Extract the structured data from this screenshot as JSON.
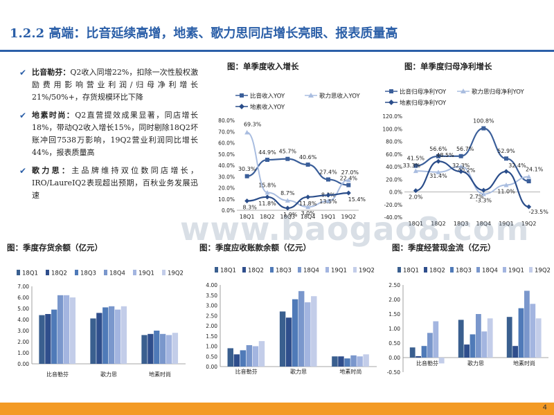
{
  "header": {
    "title": "1.2.2 高端：比音延续高增，地素、歌力思同店增长亮眼、报表质量高"
  },
  "bullets": [
    {
      "head": "比音勒芬：",
      "text": "Q2收入同增22%，扣除一次性股权激励费用影响营业利润/归母净利增长21%/50%+，存货规模环比下降"
    },
    {
      "head": "地素时尚：",
      "text": "Q2直营提效成果显著，同店增长18%，带动Q2收入增长15%，同时剔除18Q2坏账冲回7538万影响，19Q2营业利润同比增长44%，报表质量高"
    },
    {
      "head": "歌力思：",
      "text": "主品牌维持双位数同店增长，IRO/LaureIQ2表现超出预期，百秋业务发展迅速"
    }
  ],
  "check_icon": "checkmark-icon",
  "watermark": "www.baogao8.com",
  "page_number": "4",
  "colors": {
    "title": "#2b5fa8",
    "footer": "#f39a25",
    "bar_series": [
      "#3a5f8f",
      "#2f4e8c",
      "#4f7ab8",
      "#7a97cc",
      "#a3b5e0",
      "#c3cde9"
    ],
    "line_series": [
      "#3b5f9a",
      "#a9bde0",
      "#2a4d8a"
    ]
  },
  "chart_data": [
    {
      "type": "line",
      "title": "图：单季度收入增长",
      "categories": [
        "18Q1",
        "18Q2",
        "18Q3",
        "18Q4",
        "19Q1",
        "19Q2"
      ],
      "series": [
        {
          "name": "比音收入YOY",
          "values": [
            30.3,
            44.9,
            45.7,
            40.6,
            27.4,
            22.4
          ],
          "labels": [
            "30.3%",
            "44.9%",
            "45.7%",
            "40.6%",
            "27.4%",
            "22.4%"
          ]
        },
        {
          "name": "歌力思收入YOY",
          "values": [
            69.3,
            15.8,
            8.7,
            3.0,
            8.3,
            27.0
          ],
          "labels": [
            "69.3%",
            "15.8%",
            "8.7%",
            "3.0%",
            "8.3%",
            "27.0%"
          ]
        },
        {
          "name": "地素收入YOY",
          "values": [
            8.3,
            11.8,
            1.9,
            11.8,
            13.5,
            15.4
          ],
          "labels": [
            "8.3%",
            "11.8%",
            "1.9%",
            "11.8%",
            "13.5%",
            "15.4%"
          ]
        }
      ],
      "yticks": [
        "0.0%",
        "10.0%",
        "20.0%",
        "30.0%",
        "40.0%",
        "50.0%",
        "60.0%",
        "70.0%",
        "80.0%"
      ],
      "ylim": [
        0,
        80
      ],
      "legend": "top"
    },
    {
      "type": "line",
      "title": "图：单季度归母净利增长",
      "categories": [
        "18Q1",
        "18Q2",
        "18Q3",
        "18Q4",
        "19Q1",
        "19Q2"
      ],
      "series": [
        {
          "name": "比音归母净利YOY",
          "values": [
            41.5,
            56.6,
            56.7,
            100.8,
            52.9,
            17.0
          ],
          "labels": [
            "41.5%",
            "56.6%",
            "56.7%",
            "100.8%",
            "52.9%",
            ""
          ]
        },
        {
          "name": "歌力思归母净利YOY",
          "values": [
            33.3,
            31.4,
            40.2,
            -3.3,
            11.0,
            24.1
          ],
          "labels": [
            "33.3%",
            "31.4%",
            "40.2%",
            "-3.3%",
            "11.0%",
            "24.1%"
          ]
        },
        {
          "name": "地素归母净利YOY",
          "values": [
            2.0,
            48.5,
            32.3,
            2.7,
            32.4,
            -23.5
          ],
          "labels": [
            "2.0%",
            "48.5%",
            "32.3%",
            "2.7%",
            "32.4%",
            "-23.5%"
          ]
        }
      ],
      "yticks": [
        "-40.0%",
        "-20.0%",
        "0.0%",
        "20.0%",
        "40.0%",
        "60.0%",
        "80.0%",
        "100.0%",
        "120.0%"
      ],
      "ylim": [
        -40,
        120
      ],
      "legend": "top"
    },
    {
      "type": "bar",
      "title": "图：季度存货余额（亿元）",
      "categories": [
        "比音勒芬",
        "歌力思",
        "地素时尚"
      ],
      "series": [
        {
          "name": "18Q1",
          "values": [
            4.4,
            4.1,
            2.6
          ]
        },
        {
          "name": "18Q2",
          "values": [
            4.5,
            4.6,
            2.7
          ]
        },
        {
          "name": "18Q3",
          "values": [
            4.9,
            5.1,
            3.0
          ]
        },
        {
          "name": "18Q4",
          "values": [
            6.2,
            5.2,
            2.7
          ]
        },
        {
          "name": "19Q1",
          "values": [
            6.2,
            4.9,
            2.6
          ]
        },
        {
          "name": "19Q2",
          "values": [
            6.0,
            5.2,
            2.8
          ]
        }
      ],
      "yticks": [
        "0.00",
        "1.00",
        "2.00",
        "3.00",
        "4.00",
        "5.00",
        "6.00",
        "7.00"
      ],
      "ylim": [
        0,
        7
      ],
      "legend": "top"
    },
    {
      "type": "bar",
      "title": "图：季度应收账款余额（亿元）",
      "categories": [
        "比音勒芬",
        "歌力思",
        "地素时尚"
      ],
      "series": [
        {
          "name": "18Q1",
          "values": [
            0.9,
            2.7,
            0.5
          ]
        },
        {
          "name": "18Q2",
          "values": [
            0.6,
            2.4,
            0.5
          ]
        },
        {
          "name": "18Q3",
          "values": [
            0.8,
            3.3,
            0.4
          ]
        },
        {
          "name": "18Q4",
          "values": [
            1.05,
            3.7,
            0.55
          ]
        },
        {
          "name": "19Q1",
          "values": [
            1.0,
            3.15,
            0.5
          ]
        },
        {
          "name": "19Q2",
          "values": [
            1.25,
            3.45,
            0.6
          ]
        }
      ],
      "yticks": [
        "0.00",
        "0.50",
        "1.00",
        "1.50",
        "2.00",
        "2.50",
        "3.00",
        "3.50",
        "4.00"
      ],
      "ylim": [
        0,
        4
      ],
      "legend": "top"
    },
    {
      "type": "bar",
      "title": "图：季度经营现金流（亿元）",
      "categories": [
        "比音勒芬",
        "歌力思",
        "地素时尚"
      ],
      "series": [
        {
          "name": "18Q1",
          "values": [
            0.35,
            1.3,
            1.4
          ]
        },
        {
          "name": "18Q2",
          "values": [
            0.05,
            0.45,
            0.4
          ]
        },
        {
          "name": "18Q3",
          "values": [
            0.4,
            0.8,
            1.7
          ]
        },
        {
          "name": "18Q4",
          "values": [
            0.85,
            1.5,
            2.3
          ]
        },
        {
          "name": "19Q1",
          "values": [
            1.25,
            0.9,
            1.85
          ]
        },
        {
          "name": "19Q2",
          "values": [
            -0.2,
            1.35,
            1.35
          ]
        }
      ],
      "yticks": [
        "-0.50",
        "0.00",
        "0.50",
        "1.00",
        "1.50",
        "2.00",
        "2.50"
      ],
      "ylim": [
        -0.5,
        2.5
      ],
      "legend": "top"
    }
  ]
}
